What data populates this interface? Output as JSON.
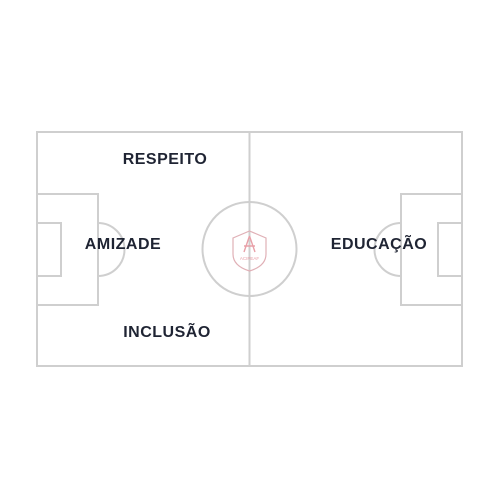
{
  "field": {
    "line_color": "#cfcfcf",
    "logo_color": "#e8a0a8",
    "logo_name": "club-crest-icon",
    "logo_text": "ACIPEAF"
  },
  "labels": {
    "respeito": "RESPEITO",
    "amizade": "AMIZADE",
    "inclusao": "INCLUSÃO",
    "educacao": "EDUCAÇÃO"
  },
  "colors": {
    "text": "#1f2433",
    "background": "#ffffff"
  }
}
